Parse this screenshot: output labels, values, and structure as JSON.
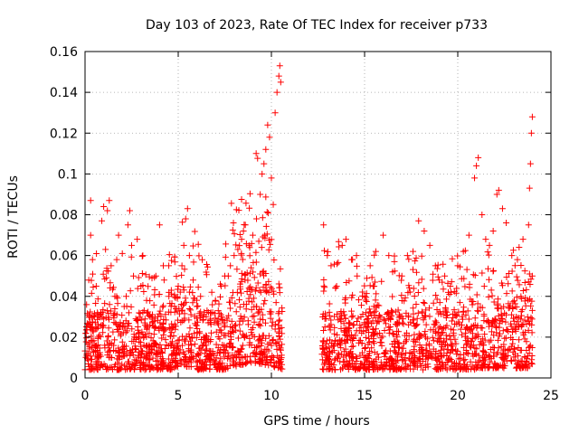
{
  "chart_data": {
    "type": "scatter",
    "title": "Day 103 of 2023, Rate Of TEC Index for receiver p733",
    "xlabel": "GPS time / hours",
    "ylabel": "ROTI / TECUs",
    "xlim": [
      0,
      25
    ],
    "ylim": [
      0,
      0.16
    ],
    "xticks": [
      0,
      5,
      10,
      15,
      20,
      25
    ],
    "yticks": [
      0,
      0.02,
      0.04,
      0.06,
      0.08,
      0.1,
      0.12,
      0.14,
      0.16
    ],
    "xtick_labels": [
      "0",
      "5",
      "10",
      "15",
      "20",
      "25"
    ],
    "ytick_labels": [
      "0",
      "0.02",
      "0.04",
      "0.06",
      "0.08",
      "0.1",
      "0.12",
      "0.14",
      "0.16"
    ],
    "grid": true,
    "marker": "+",
    "color": "#ff0000",
    "gap_hours": [
      10.6,
      12.7
    ],
    "series": [
      {
        "points": [
          [
            0.1,
            0.012
          ],
          [
            0.2,
            0.048
          ],
          [
            0.3,
            0.07
          ],
          [
            0.3,
            0.087
          ],
          [
            0.4,
            0.058
          ],
          [
            0.5,
            0.03
          ],
          [
            0.6,
            0.045
          ],
          [
            0.7,
            0.02
          ],
          [
            0.9,
            0.077
          ],
          [
            1.0,
            0.084
          ],
          [
            1.1,
            0.063
          ],
          [
            1.2,
            0.082
          ],
          [
            1.3,
            0.087
          ],
          [
            1.4,
            0.055
          ],
          [
            1.6,
            0.04
          ],
          [
            1.7,
            0.058
          ],
          [
            1.8,
            0.07
          ],
          [
            2.0,
            0.061
          ],
          [
            2.1,
            0.035
          ],
          [
            2.3,
            0.075
          ],
          [
            2.4,
            0.082
          ],
          [
            2.5,
            0.065
          ],
          [
            2.6,
            0.05
          ],
          [
            2.8,
            0.068
          ],
          [
            3.0,
            0.045
          ],
          [
            3.1,
            0.06
          ],
          [
            3.3,
            0.038
          ],
          [
            3.5,
            0.03
          ],
          [
            3.8,
            0.05
          ],
          [
            4.0,
            0.075
          ],
          [
            4.2,
            0.055
          ],
          [
            4.5,
            0.04
          ],
          [
            4.8,
            0.035
          ],
          [
            5.0,
            0.045
          ],
          [
            5.2,
            0.055
          ],
          [
            5.3,
            0.065
          ],
          [
            5.4,
            0.078
          ],
          [
            5.5,
            0.083
          ],
          [
            5.6,
            0.06
          ],
          [
            5.8,
            0.048
          ],
          [
            6.0,
            0.035
          ],
          [
            6.2,
            0.04
          ],
          [
            6.5,
            0.03
          ],
          [
            6.8,
            0.042
          ],
          [
            7.0,
            0.038
          ],
          [
            7.3,
            0.045
          ],
          [
            7.5,
            0.05
          ],
          [
            7.8,
            0.055
          ],
          [
            8.0,
            0.06
          ],
          [
            8.2,
            0.063
          ],
          [
            8.4,
            0.068
          ],
          [
            8.5,
            0.072
          ],
          [
            8.6,
            0.075
          ],
          [
            8.8,
            0.065
          ],
          [
            9.0,
            0.07
          ],
          [
            9.2,
            0.078
          ],
          [
            9.4,
            0.09
          ],
          [
            9.5,
            0.1
          ],
          [
            9.6,
            0.105
          ],
          [
            9.7,
            0.112
          ],
          [
            9.8,
            0.124
          ],
          [
            9.9,
            0.118
          ],
          [
            10.0,
            0.098
          ],
          [
            10.1,
            0.085
          ],
          [
            10.2,
            0.13
          ],
          [
            10.3,
            0.14
          ],
          [
            10.4,
            0.148
          ],
          [
            10.45,
            0.153
          ],
          [
            10.5,
            0.145
          ],
          [
            12.8,
            0.075
          ],
          [
            13.0,
            0.06
          ],
          [
            13.2,
            0.055
          ],
          [
            13.5,
            0.045
          ],
          [
            13.8,
            0.065
          ],
          [
            14.0,
            0.068
          ],
          [
            14.3,
            0.058
          ],
          [
            14.6,
            0.05
          ],
          [
            15.0,
            0.04
          ],
          [
            15.3,
            0.055
          ],
          [
            15.6,
            0.062
          ],
          [
            16.0,
            0.07
          ],
          [
            16.3,
            0.06
          ],
          [
            16.6,
            0.057
          ],
          [
            17.0,
            0.05
          ],
          [
            17.3,
            0.06
          ],
          [
            17.6,
            0.062
          ],
          [
            17.9,
            0.077
          ],
          [
            18.2,
            0.072
          ],
          [
            18.5,
            0.065
          ],
          [
            18.8,
            0.055
          ],
          [
            19.0,
            0.048
          ],
          [
            19.3,
            0.05
          ],
          [
            19.6,
            0.045
          ],
          [
            20.0,
            0.055
          ],
          [
            20.3,
            0.062
          ],
          [
            20.6,
            0.07
          ],
          [
            20.9,
            0.098
          ],
          [
            21.0,
            0.104
          ],
          [
            21.1,
            0.108
          ],
          [
            21.3,
            0.08
          ],
          [
            21.5,
            0.068
          ],
          [
            21.7,
            0.065
          ],
          [
            21.9,
            0.072
          ],
          [
            22.1,
            0.09
          ],
          [
            22.2,
            0.092
          ],
          [
            22.4,
            0.083
          ],
          [
            22.6,
            0.076
          ],
          [
            22.9,
            0.06
          ],
          [
            23.2,
            0.058
          ],
          [
            23.5,
            0.068
          ],
          [
            23.8,
            0.075
          ],
          [
            23.85,
            0.093
          ],
          [
            23.9,
            0.105
          ],
          [
            23.95,
            0.12
          ],
          [
            24.0,
            0.128
          ],
          [
            24.0,
            0.05
          ]
        ]
      }
    ]
  }
}
